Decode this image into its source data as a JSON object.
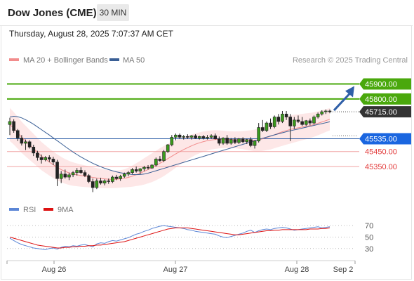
{
  "header": {
    "title": "Dow Jones (CME)",
    "timeframe": "30 MIN"
  },
  "datetime": "Thursday, August 28, 2025 7:07:37 AM CET",
  "legend": {
    "bb": {
      "label": "MA 20 + Bollinger Bands",
      "color": "#f28c8c"
    },
    "ma50": {
      "label": "MA 50",
      "color": "#3a5f95"
    }
  },
  "credit": "Research © 2025 Trading Central",
  "rsi_legend": {
    "rsi": {
      "label": "RSI",
      "color": "#5b86d6"
    },
    "ma": {
      "label": "9MA",
      "color": "#dd1111"
    }
  },
  "chart_data": {
    "type": "candlestick",
    "price_range": [
      45140,
      46010
    ],
    "levels": [
      {
        "value": 45900,
        "label": "45900.00",
        "kind": "resistance",
        "color": "#4aa80c",
        "label_bg": "#4aa80c"
      },
      {
        "value": 45800,
        "label": "45800.00",
        "kind": "resistance",
        "color": "#4aa80c",
        "label_bg": "#4aa80c"
      },
      {
        "value": 45715,
        "label": "45715.00",
        "kind": "last",
        "color": "#333333",
        "label_bg": "#333333"
      },
      {
        "value": 45535,
        "label": "45535.00",
        "kind": "pivot",
        "color": "#2f5fa8",
        "label_bg": "#1a66e0"
      },
      {
        "value": 45450,
        "label": "45450.00",
        "kind": "support",
        "color": "#f1a3a3",
        "label_color": "#e23b3b"
      },
      {
        "value": 45350,
        "label": "45350.00",
        "kind": "support",
        "color": "#f1a3a3",
        "label_color": "#e23b3b"
      }
    ],
    "x_ticks": [
      "Aug 26",
      "Aug 27",
      "Aug 28",
      "Sep 2"
    ],
    "candles": [
      [
        45630,
        45675,
        45560,
        45650
      ],
      [
        45650,
        45665,
        45575,
        45590
      ],
      [
        45590,
        45600,
        45520,
        45540
      ],
      [
        45540,
        45560,
        45490,
        45505
      ],
      [
        45505,
        45530,
        45460,
        45515
      ],
      [
        45515,
        45525,
        45470,
        45480
      ],
      [
        45480,
        45495,
        45420,
        45440
      ],
      [
        45440,
        45455,
        45390,
        45410
      ],
      [
        45410,
        45430,
        45370,
        45395
      ],
      [
        45395,
        45420,
        45385,
        45410
      ],
      [
        45410,
        45425,
        45380,
        45400
      ],
      [
        45400,
        45415,
        45360,
        45380
      ],
      [
        45380,
        45395,
        45220,
        45270
      ],
      [
        45270,
        45320,
        45240,
        45300
      ],
      [
        45300,
        45330,
        45270,
        45280
      ],
      [
        45280,
        45310,
        45260,
        45295
      ],
      [
        45295,
        45320,
        45280,
        45310
      ],
      [
        45310,
        45340,
        45290,
        45325
      ],
      [
        45325,
        45345,
        45300,
        45310
      ],
      [
        45310,
        45325,
        45280,
        45290
      ],
      [
        45290,
        45300,
        45240,
        45250
      ],
      [
        45250,
        45270,
        45180,
        45210
      ],
      [
        45210,
        45270,
        45200,
        45255
      ],
      [
        45255,
        45275,
        45230,
        45240
      ],
      [
        45240,
        45265,
        45225,
        45255
      ],
      [
        45255,
        45270,
        45235,
        45250
      ],
      [
        45250,
        45290,
        45240,
        45280
      ],
      [
        45280,
        45295,
        45260,
        45270
      ],
      [
        45270,
        45295,
        45255,
        45285
      ],
      [
        45285,
        45310,
        45275,
        45300
      ],
      [
        45300,
        45320,
        45285,
        45310
      ],
      [
        45310,
        45340,
        45300,
        45330
      ],
      [
        45330,
        45350,
        45310,
        45320
      ],
      [
        45320,
        45340,
        45300,
        45335
      ],
      [
        45335,
        45355,
        45320,
        45345
      ],
      [
        45345,
        45360,
        45330,
        45340
      ],
      [
        45340,
        45365,
        45335,
        45360
      ],
      [
        45360,
        45410,
        45350,
        45400
      ],
      [
        45400,
        45420,
        45380,
        45390
      ],
      [
        45390,
        45460,
        45380,
        45450
      ],
      [
        45450,
        45500,
        45440,
        45495
      ],
      [
        45495,
        45560,
        45485,
        45545
      ],
      [
        45545,
        45570,
        45525,
        45560
      ],
      [
        45560,
        45570,
        45535,
        45545
      ],
      [
        45545,
        45560,
        45530,
        45550
      ],
      [
        45550,
        45565,
        45535,
        45545
      ],
      [
        45545,
        45560,
        45530,
        45555
      ],
      [
        45555,
        45565,
        45535,
        45540
      ],
      [
        45540,
        45555,
        45530,
        45550
      ],
      [
        45550,
        45560,
        45530,
        45540
      ],
      [
        45540,
        45560,
        45530,
        45545
      ],
      [
        45545,
        45565,
        45535,
        45555
      ],
      [
        45555,
        45570,
        45530,
        45535
      ],
      [
        45535,
        45550,
        45490,
        45505
      ],
      [
        45505,
        45545,
        45495,
        45540
      ],
      [
        45540,
        45560,
        45495,
        45505
      ],
      [
        45505,
        45540,
        45495,
        45530
      ],
      [
        45530,
        45545,
        45500,
        45510
      ],
      [
        45510,
        45540,
        45500,
        45535
      ],
      [
        45535,
        45545,
        45505,
        45515
      ],
      [
        45515,
        45535,
        45500,
        45530
      ],
      [
        45530,
        45545,
        45480,
        45490
      ],
      [
        45490,
        45525,
        45470,
        45520
      ],
      [
        45520,
        45640,
        45510,
        45610
      ],
      [
        45610,
        45660,
        45580,
        45590
      ],
      [
        45590,
        45650,
        45580,
        45640
      ],
      [
        45640,
        45670,
        45600,
        45615
      ],
      [
        45615,
        45690,
        45605,
        45680
      ],
      [
        45680,
        45700,
        45630,
        45650
      ],
      [
        45650,
        45720,
        45640,
        45700
      ],
      [
        45700,
        45720,
        45660,
        45680
      ],
      [
        45680,
        45700,
        45520,
        45620
      ],
      [
        45620,
        45680,
        45600,
        45660
      ],
      [
        45660,
        45690,
        45640,
        45650
      ],
      [
        45650,
        45680,
        45620,
        45630
      ],
      [
        45630,
        45660,
        45620,
        45655
      ],
      [
        45655,
        45670,
        45625,
        45640
      ],
      [
        45640,
        45690,
        45630,
        45680
      ],
      [
        45680,
        45710,
        45670,
        45700
      ],
      [
        45700,
        45725,
        45690,
        45715
      ],
      [
        45715,
        45730,
        45700,
        45720
      ],
      [
        45720,
        45730,
        45705,
        45715
      ]
    ],
    "ma20": [
      45630,
      45605,
      45575,
      45545,
      45520,
      45495,
      45470,
      45445,
      45420,
      45400,
      45380,
      45362,
      45345,
      45330,
      45318,
      45308,
      45300,
      45295,
      45290,
      45286,
      45282,
      45278,
      45274,
      45271,
      45268,
      45266,
      45265,
      45266,
      45268,
      45272,
      45278,
      45286,
      45296,
      45306,
      45318,
      45330,
      45343,
      45357,
      45372,
      45387,
      45403,
      45419,
      45434,
      45449,
      45463,
      45476,
      45488,
      45499,
      45508,
      45516,
      45522,
      45527,
      45530,
      45531,
      45531,
      45530,
      45529,
      45528,
      45527,
      45526,
      45525,
      45524,
      45524,
      45528,
      45535,
      45543,
      45552,
      45562,
      45572,
      45582,
      45590,
      45597,
      45603,
      45608,
      45613,
      45618,
      45623,
      45630,
      45638,
      45647,
      45656,
      45665
    ],
    "bb_width": [
      110,
      108,
      106,
      104,
      102,
      100,
      98,
      96,
      94,
      92,
      90,
      88,
      86,
      84,
      82,
      80,
      78,
      76,
      74,
      72,
      70,
      68,
      66,
      64,
      62,
      60,
      58,
      58,
      58,
      60,
      64,
      70,
      76,
      82,
      88,
      92,
      96,
      98,
      100,
      100,
      98,
      96,
      92,
      88,
      84,
      80,
      76,
      72,
      70,
      68,
      66,
      64,
      62,
      60,
      58,
      56,
      56,
      56,
      58,
      60,
      64,
      68,
      72,
      76,
      80,
      84,
      88,
      90,
      92,
      94,
      94,
      94,
      92,
      90,
      88,
      86,
      84,
      82,
      80,
      78,
      76,
      74
    ],
    "ma50": [
      45680,
      45685,
      45682,
      45674,
      45662,
      45648,
      45632,
      45614,
      45596,
      45578,
      45560,
      45541,
      45522,
      45503,
      45484,
      45465,
      45447,
      45430,
      45414,
      45399,
      45385,
      45372,
      45360,
      45349,
      45339,
      45330,
      45322,
      45315,
      45309,
      45304,
      45300,
      45297,
      45296,
      45297,
      45300,
      45306,
      45314,
      45322,
      45330,
      45338,
      45346,
      45354,
      45362,
      45370,
      45378,
      45386,
      45394,
      45402,
      45410,
      45418,
      45426,
      45434,
      45442,
      45450,
      45458,
      45466,
      45474,
      45482,
      45490,
      45498,
      45506,
      45514,
      45522,
      45530,
      45538,
      45546,
      45554,
      45561,
      45568,
      45575,
      45582,
      45588,
      45594,
      45600,
      45606,
      45612,
      45618,
      45624,
      45630,
      45636,
      45642,
      45648
    ],
    "rsi": {
      "ylim": [
        15,
        80
      ],
      "ticks": [
        70,
        50,
        30
      ],
      "values": [
        48,
        44,
        40,
        37,
        35,
        33,
        31,
        30,
        29,
        28,
        30,
        31,
        29,
        32,
        34,
        33,
        35,
        34,
        36,
        37,
        35,
        33,
        38,
        40,
        39,
        42,
        44,
        43,
        45,
        47,
        49,
        52,
        55,
        57,
        60,
        62,
        65,
        67,
        69,
        70,
        69,
        68,
        67,
        66,
        65,
        63,
        62,
        60,
        59,
        58,
        57,
        56,
        55,
        52,
        50,
        49,
        51,
        53,
        55,
        57,
        60,
        62,
        58,
        61,
        63,
        64,
        63,
        65,
        66,
        67,
        66,
        64,
        62,
        63,
        64,
        65,
        66,
        67,
        68,
        66,
        67,
        68
      ],
      "ma": [
        50,
        48,
        46,
        44,
        42,
        40,
        38,
        36,
        35,
        34,
        33,
        32,
        31,
        31,
        32,
        32,
        33,
        33,
        34,
        34,
        35,
        35,
        36,
        36,
        37,
        38,
        39,
        40,
        41,
        42,
        44,
        46,
        48,
        50,
        52,
        54,
        56,
        58,
        60,
        62,
        64,
        65,
        66,
        66,
        66,
        66,
        65,
        64,
        63,
        62,
        61,
        60,
        59,
        58,
        57,
        56,
        55,
        54,
        54,
        55,
        56,
        57,
        58,
        59,
        60,
        61,
        61,
        62,
        62,
        63,
        63,
        63,
        63,
        63,
        63,
        63,
        64,
        64,
        64,
        65,
        65,
        66
      ]
    }
  }
}
